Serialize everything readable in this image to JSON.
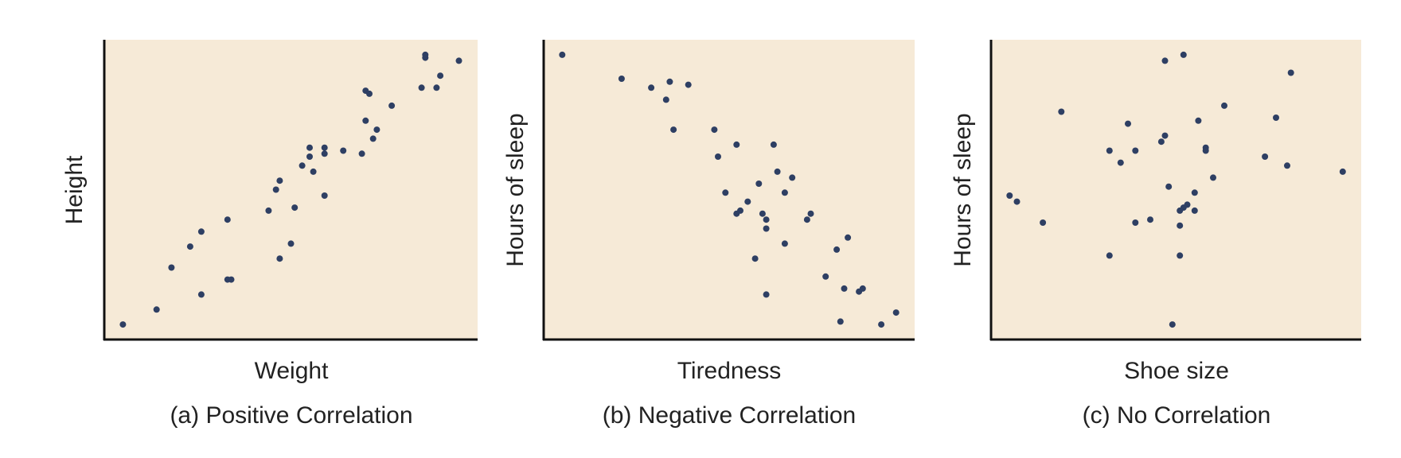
{
  "chart_data": [
    {
      "type": "scatter",
      "title": "(a) Positive Correlation",
      "xlabel": "Weight",
      "ylabel": "Height",
      "xlim": [
        0,
        100
      ],
      "ylim": [
        0,
        100
      ],
      "grid": false,
      "dot_color": "#2e3f63",
      "background_color": "#f6ead7",
      "points": [
        [
          5,
          5
        ],
        [
          14,
          10
        ],
        [
          18,
          24
        ],
        [
          23,
          31
        ],
        [
          26,
          15
        ],
        [
          26,
          36
        ],
        [
          33,
          20
        ],
        [
          34,
          20
        ],
        [
          33,
          40
        ],
        [
          44,
          43
        ],
        [
          46,
          50
        ],
        [
          47,
          53
        ],
        [
          47,
          27
        ],
        [
          50,
          32
        ],
        [
          51,
          44
        ],
        [
          53,
          58
        ],
        [
          55,
          64
        ],
        [
          55,
          61
        ],
        [
          56,
          56
        ],
        [
          59,
          48
        ],
        [
          59,
          62
        ],
        [
          59,
          64
        ],
        [
          64,
          63
        ],
        [
          69,
          62
        ],
        [
          70,
          83
        ],
        [
          71,
          82
        ],
        [
          70,
          73
        ],
        [
          72,
          67
        ],
        [
          73,
          70
        ],
        [
          77,
          78
        ],
        [
          85,
          84
        ],
        [
          86,
          94
        ],
        [
          86,
          95
        ],
        [
          89,
          84
        ],
        [
          90,
          88
        ],
        [
          95,
          93
        ]
      ]
    },
    {
      "type": "scatter",
      "title": "(b) Negative Correlation",
      "xlabel": "Tiredness",
      "ylabel": "Hours of sleep",
      "xlim": [
        0,
        100
      ],
      "ylim": [
        0,
        100
      ],
      "grid": false,
      "dot_color": "#2e3f63",
      "background_color": "#f6ead7",
      "points": [
        [
          5,
          95
        ],
        [
          21,
          87
        ],
        [
          29,
          84
        ],
        [
          34,
          86
        ],
        [
          39,
          85
        ],
        [
          33,
          80
        ],
        [
          35,
          70
        ],
        [
          46,
          70
        ],
        [
          47,
          61
        ],
        [
          52,
          65
        ],
        [
          49,
          49
        ],
        [
          52,
          42
        ],
        [
          53,
          43
        ],
        [
          55,
          46
        ],
        [
          58,
          52
        ],
        [
          59,
          42
        ],
        [
          60,
          37
        ],
        [
          60,
          40
        ],
        [
          62,
          65
        ],
        [
          63,
          56
        ],
        [
          65,
          49
        ],
        [
          67,
          54
        ],
        [
          65,
          32
        ],
        [
          57,
          27
        ],
        [
          60,
          15
        ],
        [
          71,
          40
        ],
        [
          72,
          42
        ],
        [
          76,
          21
        ],
        [
          79,
          30
        ],
        [
          81,
          17
        ],
        [
          82,
          34
        ],
        [
          85,
          16
        ],
        [
          86,
          17
        ],
        [
          80,
          6
        ],
        [
          91,
          5
        ],
        [
          95,
          9
        ]
      ]
    },
    {
      "type": "scatter",
      "title": "(c) No Correlation",
      "xlabel": "Shoe size",
      "ylabel": "Hours of sleep",
      "xlim": [
        0,
        100
      ],
      "ylim": [
        0,
        100
      ],
      "grid": false,
      "dot_color": "#2e3f63",
      "background_color": "#f6ead7",
      "points": [
        [
          5,
          48
        ],
        [
          7,
          46
        ],
        [
          14,
          39
        ],
        [
          19,
          76
        ],
        [
          32,
          63
        ],
        [
          32,
          28
        ],
        [
          35,
          59
        ],
        [
          37,
          72
        ],
        [
          39,
          63
        ],
        [
          39,
          39
        ],
        [
          43,
          40
        ],
        [
          46,
          66
        ],
        [
          47,
          68
        ],
        [
          47,
          93
        ],
        [
          48,
          51
        ],
        [
          49,
          5
        ],
        [
          51,
          28
        ],
        [
          51,
          38
        ],
        [
          52,
          44
        ],
        [
          52,
          95
        ],
        [
          53,
          45
        ],
        [
          55,
          49
        ],
        [
          55,
          43
        ],
        [
          51,
          43
        ],
        [
          56,
          73
        ],
        [
          58,
          64
        ],
        [
          60,
          54
        ],
        [
          58,
          63
        ],
        [
          63,
          78
        ],
        [
          74,
          61
        ],
        [
          77,
          74
        ],
        [
          80,
          58
        ],
        [
          81,
          89
        ],
        [
          95,
          56
        ]
      ]
    }
  ]
}
